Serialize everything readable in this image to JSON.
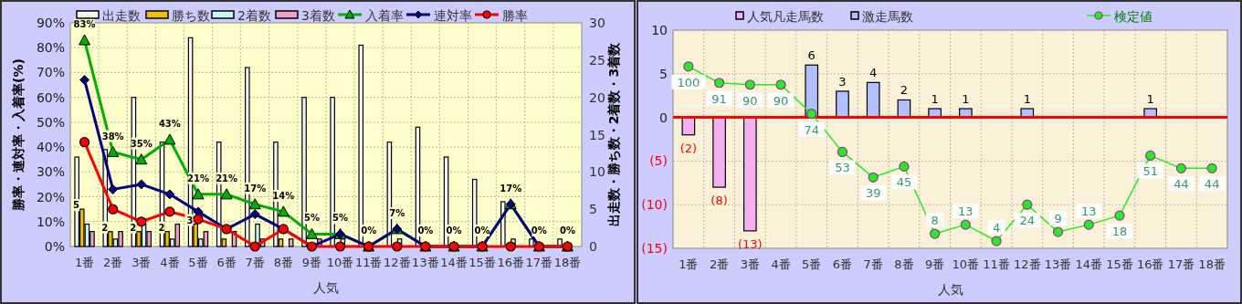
{
  "chart_data": [
    {
      "type": "bar",
      "xlabel": "人気",
      "ylabel": "勝率・連対率・入着率(%)",
      "y2label": "出走数・勝ち数・2着数・3着数",
      "categories": [
        "1番",
        "2番",
        "3番",
        "4番",
        "5番",
        "6番",
        "7番",
        "8番",
        "9番",
        "10番",
        "11番",
        "12番",
        "13番",
        "14番",
        "15番",
        "16番",
        "17番",
        "18番"
      ],
      "ylim": [
        0,
        90
      ],
      "yticks": [
        {
          "value": 0,
          "label": "0%"
        },
        {
          "value": 10,
          "label": "10%"
        },
        {
          "value": 20,
          "label": "20%"
        },
        {
          "value": 30,
          "label": "30%"
        },
        {
          "value": 40,
          "label": "40%"
        },
        {
          "value": 50,
          "label": "50%"
        },
        {
          "value": 60,
          "label": "60%"
        },
        {
          "value": 70,
          "label": "70%"
        },
        {
          "value": 80,
          "label": "80%"
        },
        {
          "value": 90,
          "label": "90%"
        }
      ],
      "y2lim": [
        0,
        30
      ],
      "y2ticks": [
        0,
        5,
        10,
        15,
        20,
        25,
        30
      ],
      "grid": true,
      "legend": "top",
      "series": [
        {
          "name": "出走数",
          "type": "bar",
          "axis": "y2",
          "color": "#f6f6f6",
          "values": [
            12,
            13,
            20,
            14,
            28,
            14,
            24,
            14,
            20,
            20,
            27,
            14,
            16,
            12,
            9,
            6,
            1,
            1
          ]
        },
        {
          "name": "勝ち数",
          "type": "bar",
          "axis": "y2",
          "color": "#f0c000",
          "values": [
            5,
            2,
            2,
            2,
            3,
            1,
            0,
            1,
            0,
            0,
            0,
            0,
            0,
            0,
            0,
            0,
            0,
            0
          ],
          "value_labels": [
            "5",
            "2",
            "2",
            "2",
            "3",
            null,
            null,
            null,
            null,
            null,
            null,
            null,
            null,
            null,
            null,
            null,
            null,
            null
          ]
        },
        {
          "name": "2着数",
          "type": "bar",
          "axis": "y2",
          "color": "#c8f4f4",
          "values": [
            3,
            1,
            3,
            1,
            1,
            0,
            3,
            0,
            0,
            1,
            0,
            1,
            0,
            0,
            0,
            1,
            0,
            0
          ]
        },
        {
          "name": "3着数",
          "type": "bar",
          "axis": "y2",
          "color": "#f0a0c8",
          "values": [
            2,
            2,
            2,
            3,
            2,
            2,
            1,
            1,
            1,
            0,
            0,
            0,
            0,
            0,
            0,
            0,
            0,
            0
          ]
        },
        {
          "name": "入着率",
          "type": "line",
          "marker": "triangle",
          "color": "#00b000",
          "values": [
            83,
            38,
            35,
            43,
            21,
            21,
            17,
            14,
            5,
            5,
            0,
            7,
            0,
            0,
            0,
            17,
            0,
            0
          ],
          "value_labels": [
            "83%",
            "38%",
            "35%",
            "43%",
            "21%",
            "21%",
            "17%",
            "14%",
            "5%",
            "5%",
            "0%",
            "7%",
            "0%",
            "0%",
            "0%",
            "17%",
            "0%",
            "0%"
          ]
        },
        {
          "name": "連対率",
          "type": "line",
          "marker": "diamond",
          "color": "#000080",
          "values": [
            67,
            23,
            25,
            21,
            14,
            7,
            13,
            7,
            0,
            5,
            0,
            7,
            0,
            0,
            0,
            17,
            0,
            0
          ]
        },
        {
          "name": "勝率",
          "type": "line",
          "marker": "circle",
          "color": "#ff0000",
          "values": [
            42,
            15,
            10,
            14,
            11,
            7,
            0,
            7,
            0,
            0,
            0,
            0,
            0,
            0,
            0,
            0,
            0,
            0
          ]
        }
      ]
    },
    {
      "type": "bar",
      "xlabel": "人気",
      "stacked": true,
      "categories": [
        "1番",
        "2番",
        "3番",
        "4番",
        "5番",
        "6番",
        "7番",
        "8番",
        "9番",
        "10番",
        "11番",
        "12番",
        "13番",
        "14番",
        "15番",
        "16番",
        "17番",
        "18番"
      ],
      "ylim": [
        -15,
        10
      ],
      "yticks": [
        {
          "value": 10,
          "label": "10"
        },
        {
          "value": 5,
          "label": "5"
        },
        {
          "value": 0,
          "label": "0"
        },
        {
          "value": -5,
          "label": "(5)"
        },
        {
          "value": -10,
          "label": "(10)"
        },
        {
          "value": -15,
          "label": "(15)"
        }
      ],
      "y2lim": [
        0,
        120
      ],
      "grid": true,
      "legend": "top",
      "ref_lines": [
        {
          "axis": "y",
          "value": 0,
          "color": "#ff0000"
        }
      ],
      "series": [
        {
          "name": "人気凡走馬数",
          "type": "bar",
          "color": "#f4b0f0",
          "values": [
            -2,
            -8,
            -13,
            null,
            null,
            null,
            null,
            null,
            null,
            null,
            null,
            null,
            null,
            null,
            null,
            null,
            null,
            null
          ],
          "value_labels": [
            "(2)",
            "(8)",
            "(13)",
            null,
            null,
            null,
            null,
            null,
            null,
            null,
            null,
            null,
            null,
            null,
            null,
            null,
            null,
            null
          ]
        },
        {
          "name": "激走馬数",
          "type": "bar",
          "color": "#b0c0ff",
          "values": [
            null,
            null,
            null,
            null,
            6,
            3,
            4,
            2,
            1,
            1,
            null,
            1,
            null,
            null,
            null,
            1,
            null,
            null
          ],
          "value_labels": [
            null,
            null,
            null,
            null,
            "6",
            "3",
            "4",
            "2",
            "1",
            "1",
            null,
            "1",
            null,
            null,
            null,
            "1",
            null,
            null
          ]
        },
        {
          "name": "検定値",
          "type": "line",
          "axis": "y2",
          "marker": "circle",
          "color": "#22ee22",
          "values": [
            100,
            91,
            90,
            90,
            74,
            53,
            39,
            45,
            8,
            13,
            4,
            24,
            9,
            13,
            18,
            51,
            44,
            44
          ],
          "value_labels": [
            "100",
            "91",
            "90",
            "90",
            "74",
            "53",
            "39",
            "45",
            "8",
            "13",
            "4",
            "24",
            "9",
            "13",
            "18",
            "51",
            "44",
            "44"
          ]
        }
      ]
    }
  ]
}
